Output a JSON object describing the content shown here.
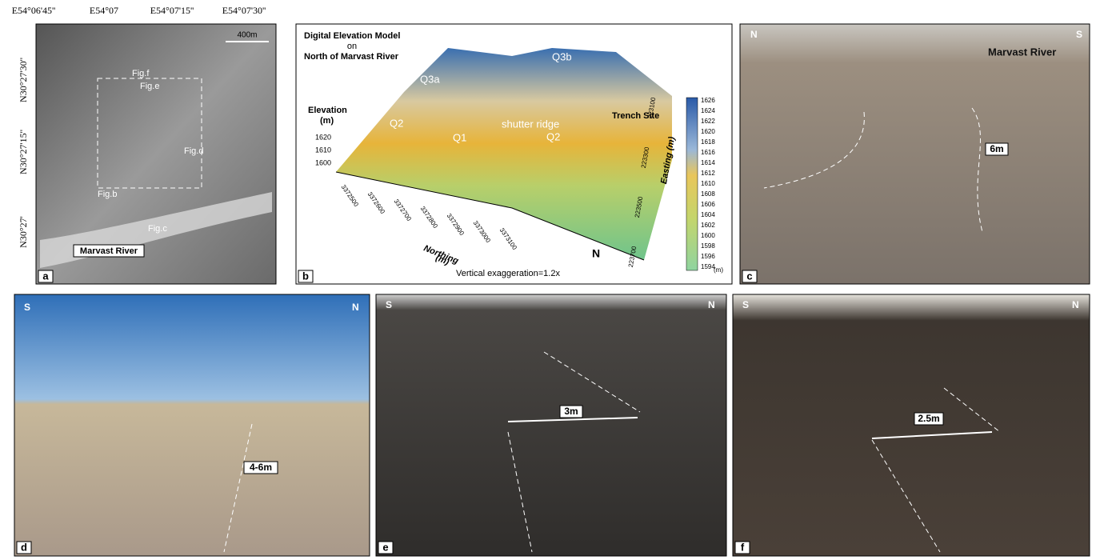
{
  "panel_a": {
    "label": "a",
    "top_coords": [
      "E54°06'45''",
      "E54°07",
      "E54°07'15''",
      "E54°07'30''"
    ],
    "left_coords": [
      "N30°27'30''",
      "N30°27'15''",
      "N30°27'"
    ],
    "scale": "400m",
    "figure_labels": [
      "Fig.f",
      "Fig.e",
      "Fig.d",
      "Fig.b",
      "Fig.c"
    ],
    "river": "Marvast River"
  },
  "panel_b": {
    "label": "b",
    "title": [
      "Digital Elevation Model",
      "on",
      "North of Marvast River"
    ],
    "elevation_title": [
      "Elevation",
      "(m)"
    ],
    "elevation_ticks": [
      "1620",
      "1610",
      "1600"
    ],
    "units": [
      "Q3b",
      "Q3a",
      "Q2",
      "Q1",
      "shutter ridge",
      "Q2"
    ],
    "trench": "Trench Site",
    "northing_title": [
      "Northing",
      "(m)"
    ],
    "northing_ticks": [
      "3372500",
      "3372600",
      "3372700",
      "3372800",
      "3372900",
      "3373000",
      "3373100"
    ],
    "easting_title": "Easting (m)",
    "easting_ticks": [
      "223100",
      "223300",
      "223500",
      "223700"
    ],
    "north": "N",
    "exaggeration": "Vertical exaggeration=1.2x",
    "colorbar_ticks": [
      "1626",
      "1624",
      "1622",
      "1620",
      "1618",
      "1616",
      "1614",
      "1612",
      "1610",
      "1608",
      "1606",
      "1604",
      "1602",
      "1600",
      "1598",
      "1596",
      "1594"
    ],
    "colorbar_unit": "(m)"
  },
  "panel_c": {
    "label": "c",
    "left": "N",
    "right": "S",
    "river": "Marvast River",
    "offset": "6m"
  },
  "panel_d": {
    "label": "d",
    "left": "S",
    "right": "N",
    "offset": "4-6m"
  },
  "panel_e": {
    "label": "e",
    "left": "S",
    "right": "N",
    "offset": "3m"
  },
  "panel_f": {
    "label": "f",
    "left": "S",
    "right": "N",
    "offset": "2.5m"
  }
}
